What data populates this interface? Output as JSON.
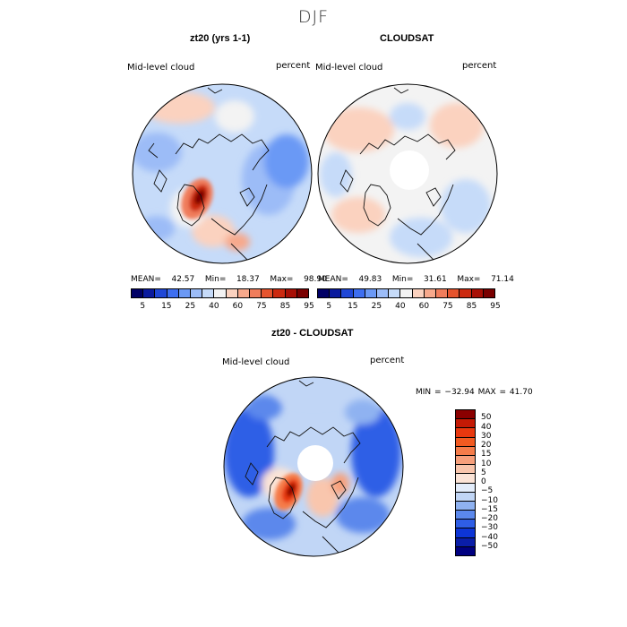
{
  "page": {
    "title": "DJF"
  },
  "panels": {
    "model": {
      "title": "zt20 (yrs 1-1)",
      "field_label": "Mid-level cloud",
      "units": "percent",
      "mean_label": "MEAN=",
      "mean_value": "42.57",
      "min_label": "Min=",
      "min_value": "18.37",
      "max_label": "Max=",
      "max_value": "98.90"
    },
    "obs": {
      "title": "CLOUDSAT",
      "field_label": "Mid-level cloud",
      "units": "percent",
      "mean_label": "MEAN=",
      "mean_value": "49.83",
      "min_label": "Min=",
      "min_value": "31.61",
      "max_label": "Max=",
      "max_value": "71.14"
    },
    "diff": {
      "title": "zt20 - CLOUDSAT",
      "field_label": "Mid-level cloud",
      "units": "percent",
      "minmax_text": "MIN = −32.94 MAX =  41.70"
    }
  },
  "colorbar_top": {
    "labels": [
      "5",
      "15",
      "25",
      "40",
      "60",
      "75",
      "85",
      "95"
    ],
    "colors": [
      "#000066",
      "#0a1a9e",
      "#1f47d6",
      "#3d6ef0",
      "#6b99f5",
      "#9cbcf7",
      "#c6dbf9",
      "#f3f3f3",
      "#fbd2bf",
      "#f7a98c",
      "#f07d5c",
      "#e6542e",
      "#cc2a10",
      "#a80f05",
      "#7a0000"
    ]
  },
  "colorbar_diff": {
    "labels": [
      "50",
      "40",
      "30",
      "20",
      "15",
      "10",
      "5",
      "0",
      "−5",
      "−10",
      "−15",
      "−20",
      "−30",
      "−40",
      "−50"
    ],
    "colors": [
      "#8b0000",
      "#c41a05",
      "#e8380f",
      "#f25a21",
      "#f57c4a",
      "#f7a07c",
      "#f9c6ad",
      "#fbe4d7",
      "#e3edfb",
      "#c1d6f6",
      "#8fb2f1",
      "#5b88ec",
      "#2f5ee6",
      "#0d35d6",
      "#0a1ea8",
      "#000080"
    ]
  },
  "icons": {
    "map_model": "polar-map",
    "map_obs": "polar-map",
    "map_diff": "polar-map"
  }
}
